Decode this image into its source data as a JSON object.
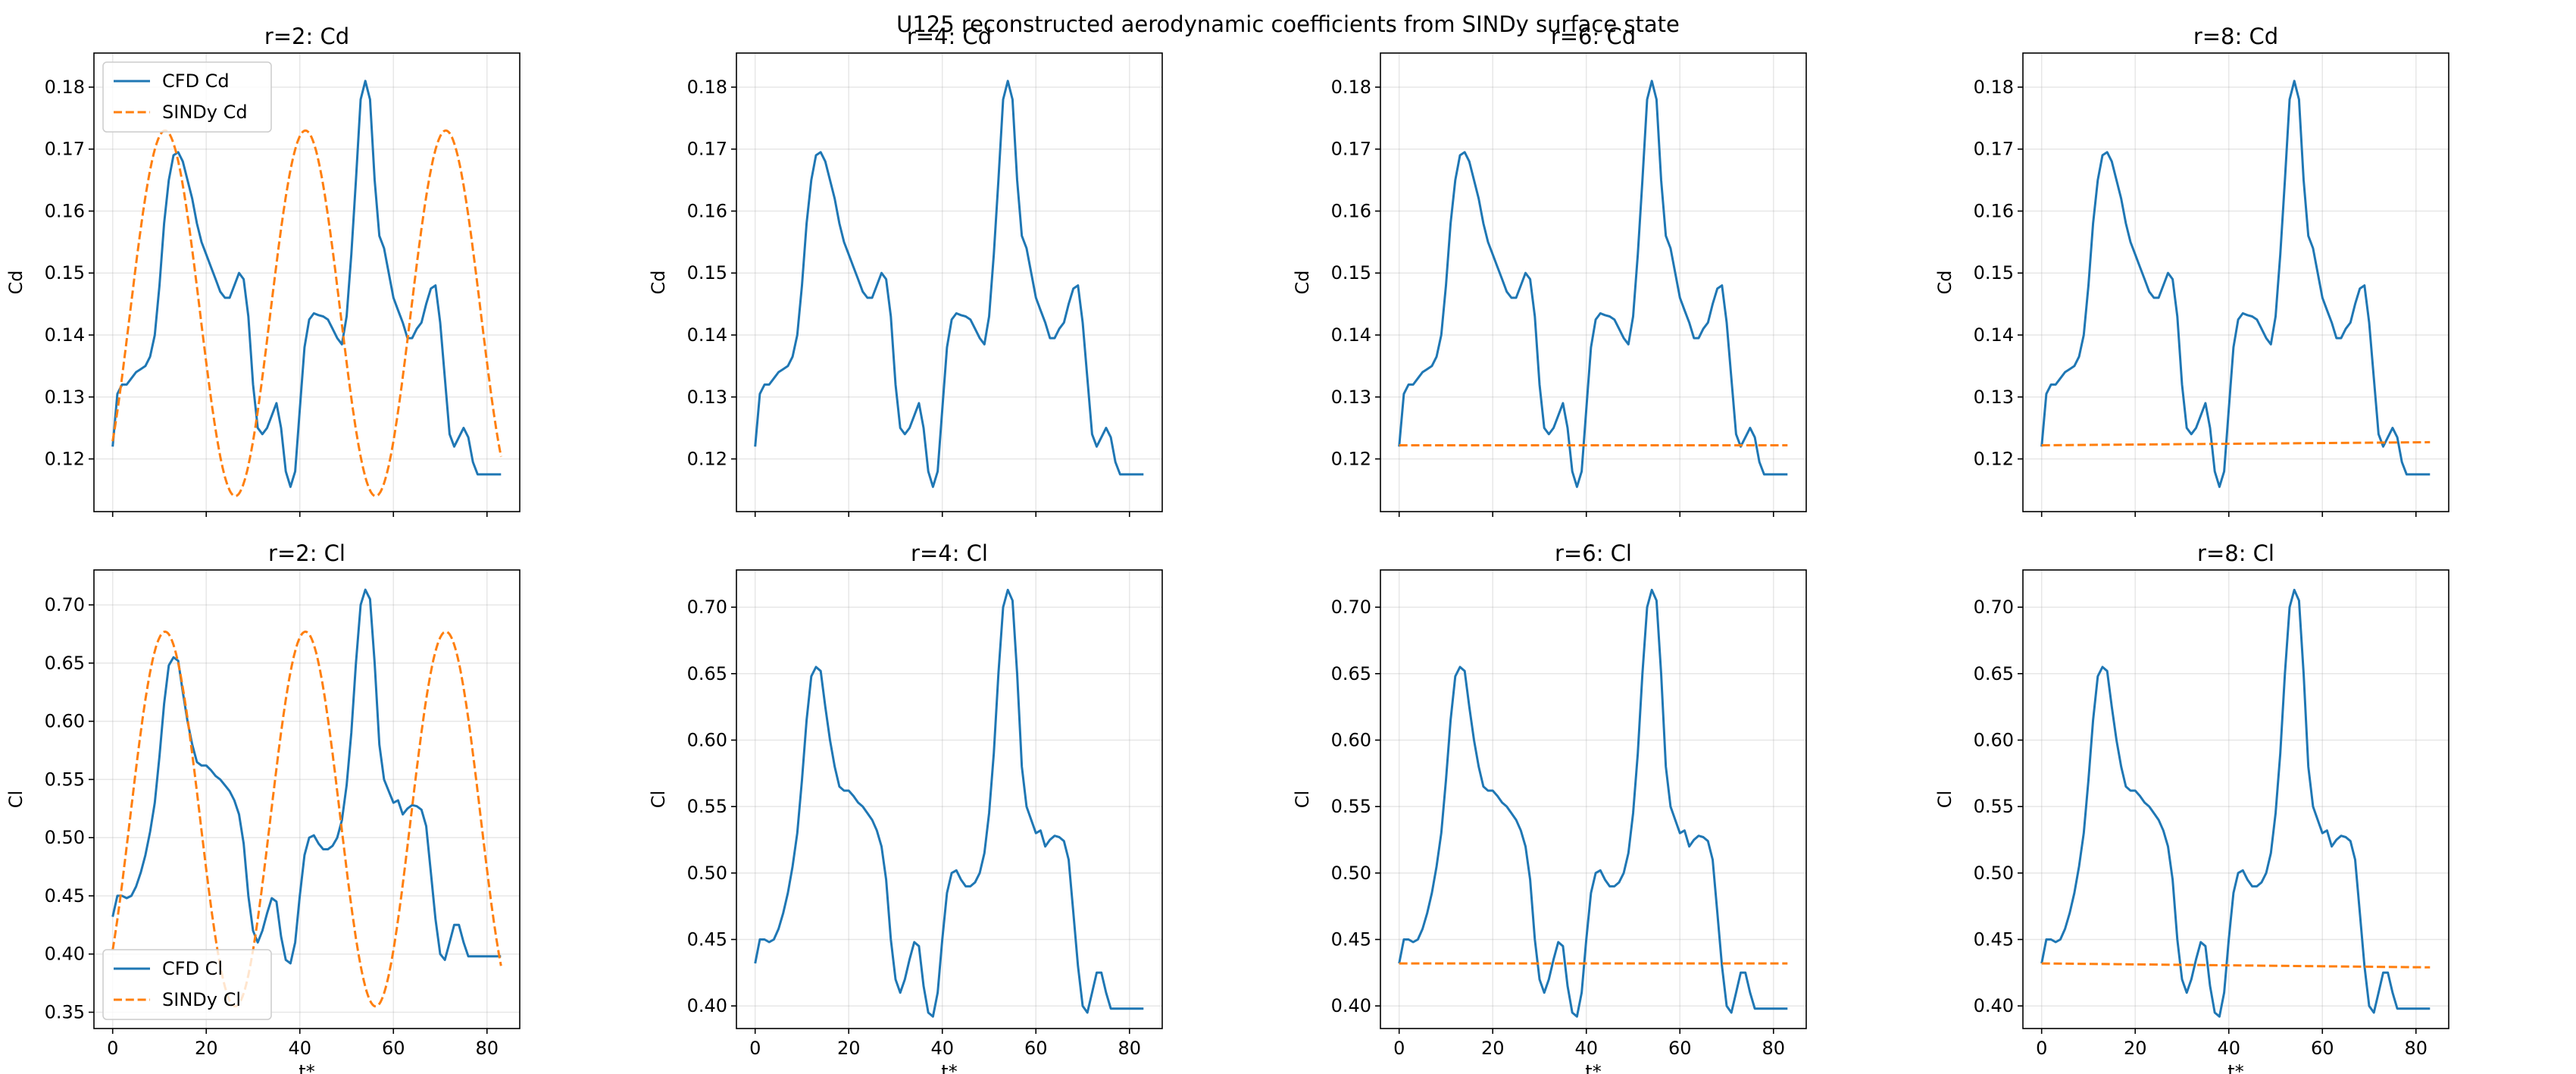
{
  "figure": {
    "title": "U125 reconstructed aerodynamic coefficients from SINDy surface state"
  },
  "colors": {
    "cfd": "#1f77b4",
    "sindy": "#ff7f0e"
  },
  "chart_data": [
    {
      "type": "line",
      "title": "r=2: Cd",
      "xlabel": "",
      "ylabel": "Cd",
      "xlim": [
        -4,
        87
      ],
      "ylim": [
        0.1115,
        0.1855
      ],
      "xticks": [
        0,
        20,
        40,
        60,
        80
      ],
      "show_xticklabels": false,
      "yticks": [
        0.12,
        0.13,
        0.14,
        0.15,
        0.16,
        0.17,
        0.18
      ],
      "ytick_labels": [
        "0.12",
        "0.13",
        "0.14",
        "0.15",
        "0.16",
        "0.17",
        "0.18"
      ],
      "grid": true,
      "legend": "upper-left",
      "series": [
        {
          "name": "CFD Cd",
          "style": "solid",
          "kind": "cfd_cd"
        },
        {
          "name": "SINDy Cd",
          "style": "dashed",
          "kind": "sine",
          "params": {
            "mean": 0.1435,
            "amp": 0.0295,
            "period": 30,
            "shift": 3.7
          }
        }
      ]
    },
    {
      "type": "line",
      "title": "r=4: Cd",
      "xlabel": "",
      "ylabel": "Cd",
      "xlim": [
        -4,
        87
      ],
      "ylim": [
        0.1115,
        0.1855
      ],
      "xticks": [
        0,
        20,
        40,
        60,
        80
      ],
      "show_xticklabels": false,
      "yticks": [
        0.12,
        0.13,
        0.14,
        0.15,
        0.16,
        0.17,
        0.18
      ],
      "ytick_labels": [
        "0.12",
        "0.13",
        "0.14",
        "0.15",
        "0.16",
        "0.17",
        "0.18"
      ],
      "grid": true,
      "legend": "none",
      "series": [
        {
          "name": "CFD Cd",
          "style": "solid",
          "kind": "cfd_cd"
        }
      ]
    },
    {
      "type": "line",
      "title": "r=6: Cd",
      "xlabel": "",
      "ylabel": "Cd",
      "xlim": [
        -4,
        87
      ],
      "ylim": [
        0.1115,
        0.1855
      ],
      "xticks": [
        0,
        20,
        40,
        60,
        80
      ],
      "show_xticklabels": false,
      "yticks": [
        0.12,
        0.13,
        0.14,
        0.15,
        0.16,
        0.17,
        0.18
      ],
      "ytick_labels": [
        "0.12",
        "0.13",
        "0.14",
        "0.15",
        "0.16",
        "0.17",
        "0.18"
      ],
      "grid": true,
      "legend": "none",
      "series": [
        {
          "name": "CFD Cd",
          "style": "solid",
          "kind": "cfd_cd"
        },
        {
          "name": "SINDy Cd",
          "style": "dashed",
          "kind": "linear",
          "params": {
            "y0": 0.1222,
            "y1": 0.1222
          }
        }
      ]
    },
    {
      "type": "line",
      "title": "r=8: Cd",
      "xlabel": "",
      "ylabel": "Cd",
      "xlim": [
        -4,
        87
      ],
      "ylim": [
        0.1115,
        0.1855
      ],
      "xticks": [
        0,
        20,
        40,
        60,
        80
      ],
      "show_xticklabels": false,
      "yticks": [
        0.12,
        0.13,
        0.14,
        0.15,
        0.16,
        0.17,
        0.18
      ],
      "ytick_labels": [
        "0.12",
        "0.13",
        "0.14",
        "0.15",
        "0.16",
        "0.17",
        "0.18"
      ],
      "grid": true,
      "legend": "none",
      "series": [
        {
          "name": "CFD Cd",
          "style": "solid",
          "kind": "cfd_cd"
        },
        {
          "name": "SINDy Cd",
          "style": "dashed",
          "kind": "linear",
          "params": {
            "y0": 0.1222,
            "y1": 0.1227
          }
        }
      ]
    },
    {
      "type": "line",
      "title": "r=2: Cl",
      "xlabel": "t*",
      "ylabel": "Cl",
      "xlim": [
        -4,
        87
      ],
      "ylim": [
        0.336,
        0.73
      ],
      "xticks": [
        0,
        20,
        40,
        60,
        80
      ],
      "show_xticklabels": true,
      "yticks": [
        0.35,
        0.4,
        0.45,
        0.5,
        0.55,
        0.6,
        0.65,
        0.7
      ],
      "ytick_labels": [
        "0.35",
        "0.40",
        "0.45",
        "0.50",
        "0.55",
        "0.60",
        "0.65",
        "0.70"
      ],
      "grid": true,
      "legend": "lower-left",
      "series": [
        {
          "name": "CFD Cl",
          "style": "solid",
          "kind": "cfd_cl"
        },
        {
          "name": "SINDy Cl",
          "style": "dashed",
          "kind": "sine",
          "params": {
            "mean": 0.516,
            "amp": 0.161,
            "period": 30,
            "shift": 3.7
          }
        }
      ]
    },
    {
      "type": "line",
      "title": "r=4: Cl",
      "xlabel": "t*",
      "ylabel": "Cl",
      "xlim": [
        -4,
        87
      ],
      "ylim": [
        0.383,
        0.728
      ],
      "xticks": [
        0,
        20,
        40,
        60,
        80
      ],
      "show_xticklabels": true,
      "yticks": [
        0.4,
        0.45,
        0.5,
        0.55,
        0.6,
        0.65,
        0.7
      ],
      "ytick_labels": [
        "0.40",
        "0.45",
        "0.50",
        "0.55",
        "0.60",
        "0.65",
        "0.70"
      ],
      "grid": true,
      "legend": "none",
      "series": [
        {
          "name": "CFD Cl",
          "style": "solid",
          "kind": "cfd_cl"
        }
      ]
    },
    {
      "type": "line",
      "title": "r=6: Cl",
      "xlabel": "t*",
      "ylabel": "Cl",
      "xlim": [
        -4,
        87
      ],
      "ylim": [
        0.383,
        0.728
      ],
      "xticks": [
        0,
        20,
        40,
        60,
        80
      ],
      "show_xticklabels": true,
      "yticks": [
        0.4,
        0.45,
        0.5,
        0.55,
        0.6,
        0.65,
        0.7
      ],
      "ytick_labels": [
        "0.40",
        "0.45",
        "0.50",
        "0.55",
        "0.60",
        "0.65",
        "0.70"
      ],
      "grid": true,
      "legend": "none",
      "series": [
        {
          "name": "CFD Cl",
          "style": "solid",
          "kind": "cfd_cl"
        },
        {
          "name": "SINDy Cl",
          "style": "dashed",
          "kind": "linear",
          "params": {
            "y0": 0.432,
            "y1": 0.432
          }
        }
      ]
    },
    {
      "type": "line",
      "title": "r=8: Cl",
      "xlabel": "t*",
      "ylabel": "Cl",
      "xlim": [
        -4,
        87
      ],
      "ylim": [
        0.383,
        0.728
      ],
      "xticks": [
        0,
        20,
        40,
        60,
        80
      ],
      "show_xticklabels": true,
      "yticks": [
        0.4,
        0.45,
        0.5,
        0.55,
        0.6,
        0.65,
        0.7
      ],
      "ytick_labels": [
        "0.40",
        "0.45",
        "0.50",
        "0.55",
        "0.60",
        "0.65",
        "0.70"
      ],
      "grid": true,
      "legend": "none",
      "series": [
        {
          "name": "CFD Cl",
          "style": "solid",
          "kind": "cfd_cl"
        },
        {
          "name": "SINDy Cl",
          "style": "dashed",
          "kind": "linear",
          "params": {
            "y0": 0.432,
            "y1": 0.429
          }
        }
      ]
    }
  ],
  "cfd_cd": {
    "x": [
      0,
      1,
      2,
      3,
      4,
      5,
      6,
      7,
      8,
      9,
      10,
      11,
      12,
      13,
      14,
      15,
      16,
      17,
      18,
      19,
      20,
      21,
      22,
      23,
      24,
      25,
      26,
      27,
      28,
      29,
      30,
      31,
      32,
      33,
      34,
      35,
      36,
      37,
      38,
      39,
      40,
      41,
      42,
      43,
      44,
      45,
      46,
      47,
      48,
      49,
      50,
      51,
      52,
      53,
      54,
      55,
      56,
      57,
      58,
      59,
      60,
      61,
      62,
      63,
      64,
      65,
      66,
      67,
      68,
      69,
      70,
      71,
      72,
      73,
      74,
      75,
      76,
      77,
      78,
      79,
      80,
      81,
      82,
      83
    ],
    "y": [
      0.122,
      0.1305,
      0.132,
      0.132,
      0.133,
      0.134,
      0.1345,
      0.135,
      0.1365,
      0.14,
      0.148,
      0.158,
      0.165,
      0.169,
      0.1695,
      0.168,
      0.165,
      0.162,
      0.158,
      0.155,
      0.153,
      0.151,
      0.149,
      0.147,
      0.146,
      0.146,
      0.148,
      0.15,
      0.149,
      0.143,
      0.132,
      0.125,
      0.124,
      0.125,
      0.127,
      0.129,
      0.125,
      0.118,
      0.1155,
      0.118,
      0.128,
      0.138,
      0.1425,
      0.1435,
      0.1432,
      0.143,
      0.1425,
      0.141,
      0.1395,
      0.1385,
      0.143,
      0.153,
      0.165,
      0.178,
      0.181,
      0.178,
      0.165,
      0.156,
      0.154,
      0.15,
      0.146,
      0.144,
      0.142,
      0.1395,
      0.1395,
      0.141,
      0.142,
      0.145,
      0.1475,
      0.148,
      0.142,
      0.133,
      0.124,
      0.122,
      0.1235,
      0.125,
      0.1235,
      0.1195,
      0.1175,
      0.1175,
      0.1175,
      0.1175,
      0.1175,
      0.1175
    ]
  },
  "cfd_cl": {
    "x": [
      0,
      1,
      2,
      3,
      4,
      5,
      6,
      7,
      8,
      9,
      10,
      11,
      12,
      13,
      14,
      15,
      16,
      17,
      18,
      19,
      20,
      21,
      22,
      23,
      24,
      25,
      26,
      27,
      28,
      29,
      30,
      31,
      32,
      33,
      34,
      35,
      36,
      37,
      38,
      39,
      40,
      41,
      42,
      43,
      44,
      45,
      46,
      47,
      48,
      49,
      50,
      51,
      52,
      53,
      54,
      55,
      56,
      57,
      58,
      59,
      60,
      61,
      62,
      63,
      64,
      65,
      66,
      67,
      68,
      69,
      70,
      71,
      72,
      73,
      74,
      75,
      76,
      77,
      78,
      79,
      80,
      81,
      82,
      83
    ],
    "y": [
      0.432,
      0.45,
      0.45,
      0.448,
      0.45,
      0.458,
      0.47,
      0.485,
      0.505,
      0.53,
      0.57,
      0.615,
      0.648,
      0.655,
      0.652,
      0.625,
      0.6,
      0.58,
      0.565,
      0.562,
      0.562,
      0.558,
      0.553,
      0.55,
      0.545,
      0.54,
      0.532,
      0.52,
      0.495,
      0.45,
      0.42,
      0.41,
      0.42,
      0.435,
      0.448,
      0.445,
      0.415,
      0.395,
      0.392,
      0.41,
      0.45,
      0.485,
      0.5,
      0.502,
      0.495,
      0.49,
      0.49,
      0.493,
      0.5,
      0.515,
      0.545,
      0.59,
      0.65,
      0.7,
      0.713,
      0.705,
      0.65,
      0.58,
      0.55,
      0.54,
      0.53,
      0.532,
      0.52,
      0.525,
      0.528,
      0.527,
      0.524,
      0.51,
      0.47,
      0.43,
      0.4,
      0.395,
      0.41,
      0.425,
      0.425,
      0.41,
      0.398,
      0.398,
      0.398,
      0.398,
      0.398,
      0.398,
      0.398,
      0.398
    ]
  }
}
